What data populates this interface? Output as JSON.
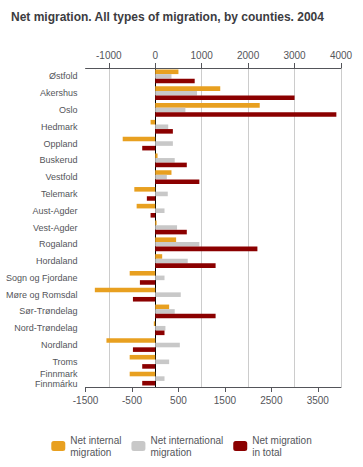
{
  "chart_data": {
    "type": "bar",
    "orientation": "horizontal",
    "title": "Net migration. All types of migration, by counties. 2004",
    "categories": [
      "Østfold",
      "Akershus",
      "Oslo",
      "Hedmark",
      "Oppland",
      "Buskerud",
      "Vestfold",
      "Telemark",
      "Aust-Agder",
      "Vest-Agder",
      "Rogaland",
      "Hordaland",
      "Sogn og Fjordane",
      "Møre og Romsdal",
      "Sør-Trøndelag",
      "Nord-Trøndelag",
      "Nordland",
      "Troms",
      "Finnmark\nFinnmárku"
    ],
    "series": [
      {
        "name": "Net internal\nmigration",
        "color": "#E8A020",
        "values": [
          500,
          1400,
          2250,
          -100,
          -700,
          50,
          350,
          -450,
          -400,
          30,
          450,
          150,
          -550,
          -1300,
          300,
          -30,
          -1050,
          -550,
          -550
        ]
      },
      {
        "name": "Net international\nmigration",
        "color": "#C8C8C8",
        "values": [
          350,
          900,
          650,
          280,
          380,
          420,
          250,
          270,
          200,
          470,
          950,
          700,
          200,
          550,
          420,
          220,
          530,
          300,
          200
        ]
      },
      {
        "name": "Net migration\nin total",
        "color": "#8B0000",
        "values": [
          850,
          3000,
          3900,
          380,
          -280,
          680,
          950,
          -180,
          -100,
          680,
          2200,
          1300,
          -330,
          -480,
          1300,
          200,
          -480,
          -280,
          -280
        ]
      }
    ],
    "xlim": [
      -1500,
      4000
    ],
    "xticks": [
      -1000,
      0,
      1000,
      2000,
      3000,
      4000
    ],
    "x2lim": [
      -1500,
      4000
    ],
    "x2ticks": [
      -1500,
      -500,
      500,
      1500,
      2500,
      3500
    ],
    "grid": true,
    "legend": "bottom"
  }
}
